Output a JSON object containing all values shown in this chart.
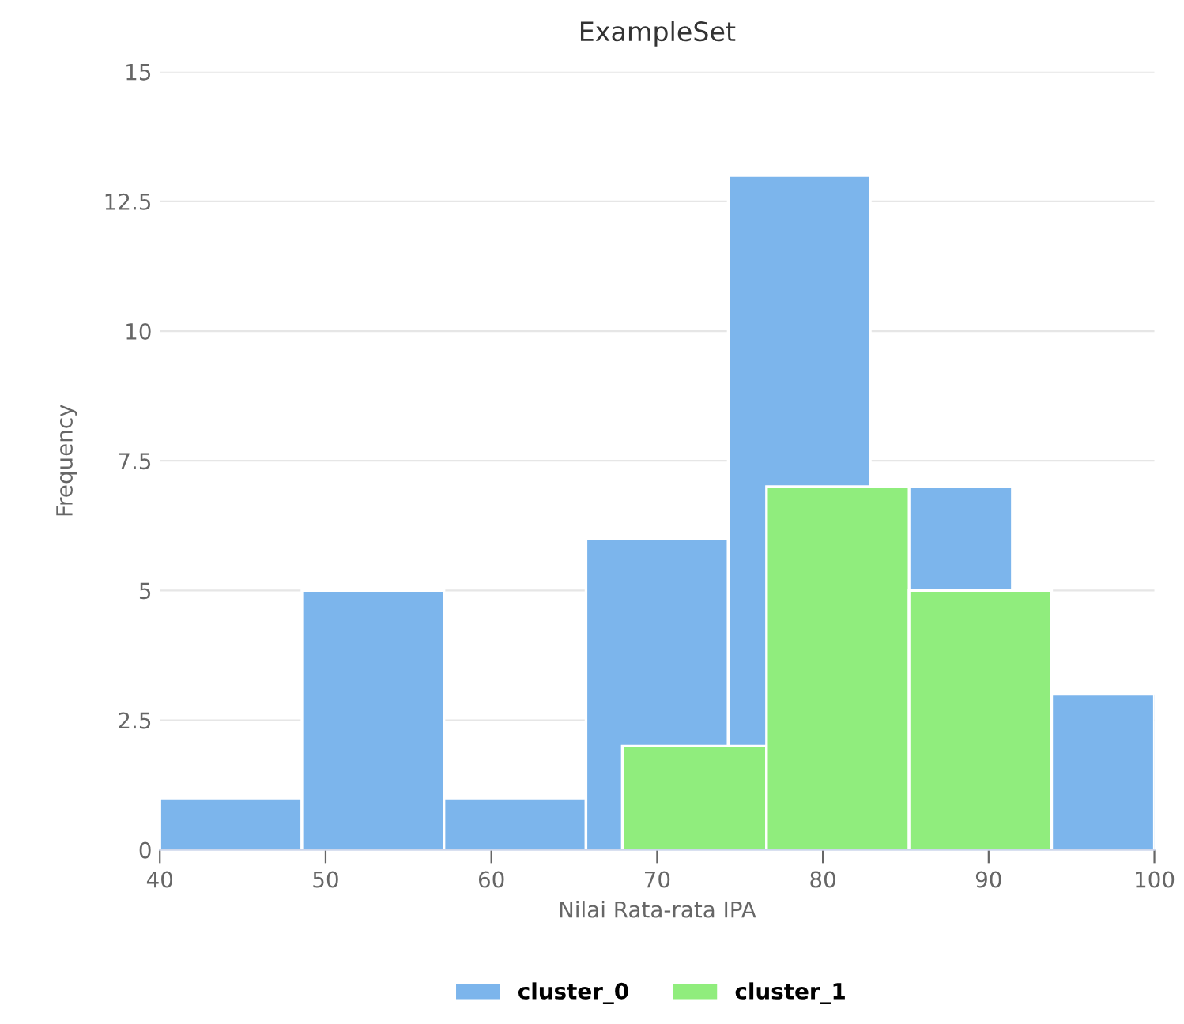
{
  "chart_data": {
    "type": "histogram",
    "title": "ExampleSet",
    "xlabel": "Nilai Rata-rata IPA",
    "ylabel": "Frequency",
    "bins": [
      40,
      48.57,
      57.14,
      65.71,
      74.29,
      82.86,
      91.43,
      100
    ],
    "series": [
      {
        "name": "cluster_0",
        "color": "#7cb5ec",
        "values": [
          1,
          5,
          1,
          6,
          13,
          7,
          3
        ]
      },
      {
        "name": "cluster_1",
        "color": "#90ed7d",
        "bins": [
          67.9,
          76.6,
          85.2,
          93.8
        ],
        "values": [
          2,
          7,
          5
        ]
      }
    ],
    "xlim": [
      40,
      100
    ],
    "xticks": [
      40,
      50,
      60,
      70,
      80,
      90,
      100
    ],
    "ylim": [
      0,
      15
    ],
    "yticks": [
      0,
      2.5,
      5,
      7.5,
      10,
      12.5,
      15
    ],
    "grid": "y",
    "legend": "bottom"
  }
}
